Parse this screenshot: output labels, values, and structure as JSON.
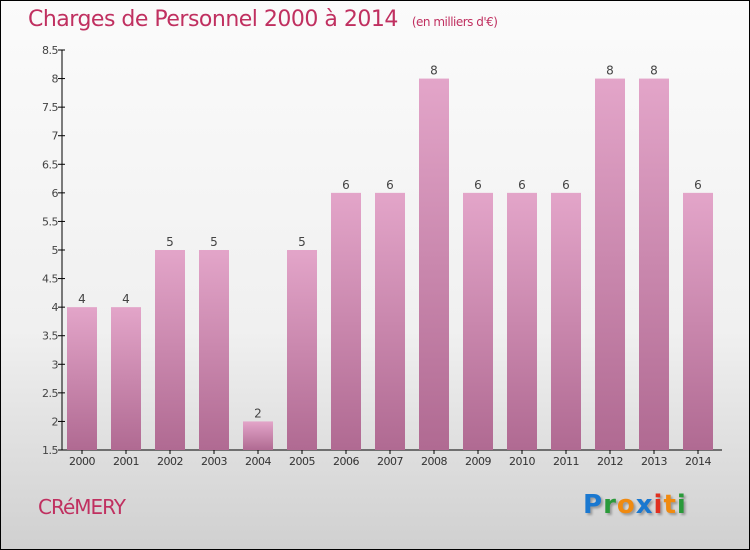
{
  "title": "Charges de Personnel 2000 à 2014",
  "unit": "(en milliers d'€)",
  "commune": "CRéMERY",
  "logo": "Proxiti",
  "colors": {
    "bar_top": "#e3a5c9",
    "bar_bottom": "#b06a92",
    "title": "#c03060"
  },
  "chart_data": {
    "type": "bar",
    "title": "Charges de Personnel 2000 à 2014",
    "xlabel": "",
    "ylabel": "",
    "categories": [
      "2000",
      "2001",
      "2002",
      "2003",
      "2004",
      "2005",
      "2006",
      "2007",
      "2008",
      "2009",
      "2010",
      "2011",
      "2012",
      "2013",
      "2014"
    ],
    "values": [
      4,
      4,
      5,
      5,
      2,
      5,
      6,
      6,
      8,
      6,
      6,
      6,
      8,
      8,
      6
    ],
    "ylim": [
      1.5,
      8.5
    ],
    "yticks": [
      "1.5",
      "2",
      "2.5",
      "3",
      "3.5",
      "4",
      "4.5",
      "5",
      "5.5",
      "6",
      "6.5",
      "7",
      "7.5",
      "8",
      "8.5"
    ],
    "grid": false
  }
}
